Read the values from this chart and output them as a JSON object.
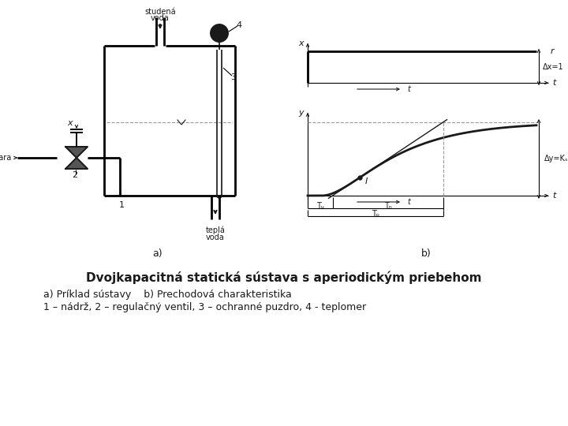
{
  "title_bold": "Dvojkapacitná statická sústava s aperiodickým priebehom",
  "subtitle1": "a) Príklad sústavy    b) Prechodová charakteristika",
  "subtitle2": "1 – nádrž, 2 – regulačný ventil, 3 – ochranné puzdro, 4 - teplomer",
  "bg_color": "#ffffff",
  "col": "#1a1a1a",
  "col_gray": "#999999",
  "lw": 1.4,
  "lw_thin": 0.8,
  "lw_thick": 2.0
}
